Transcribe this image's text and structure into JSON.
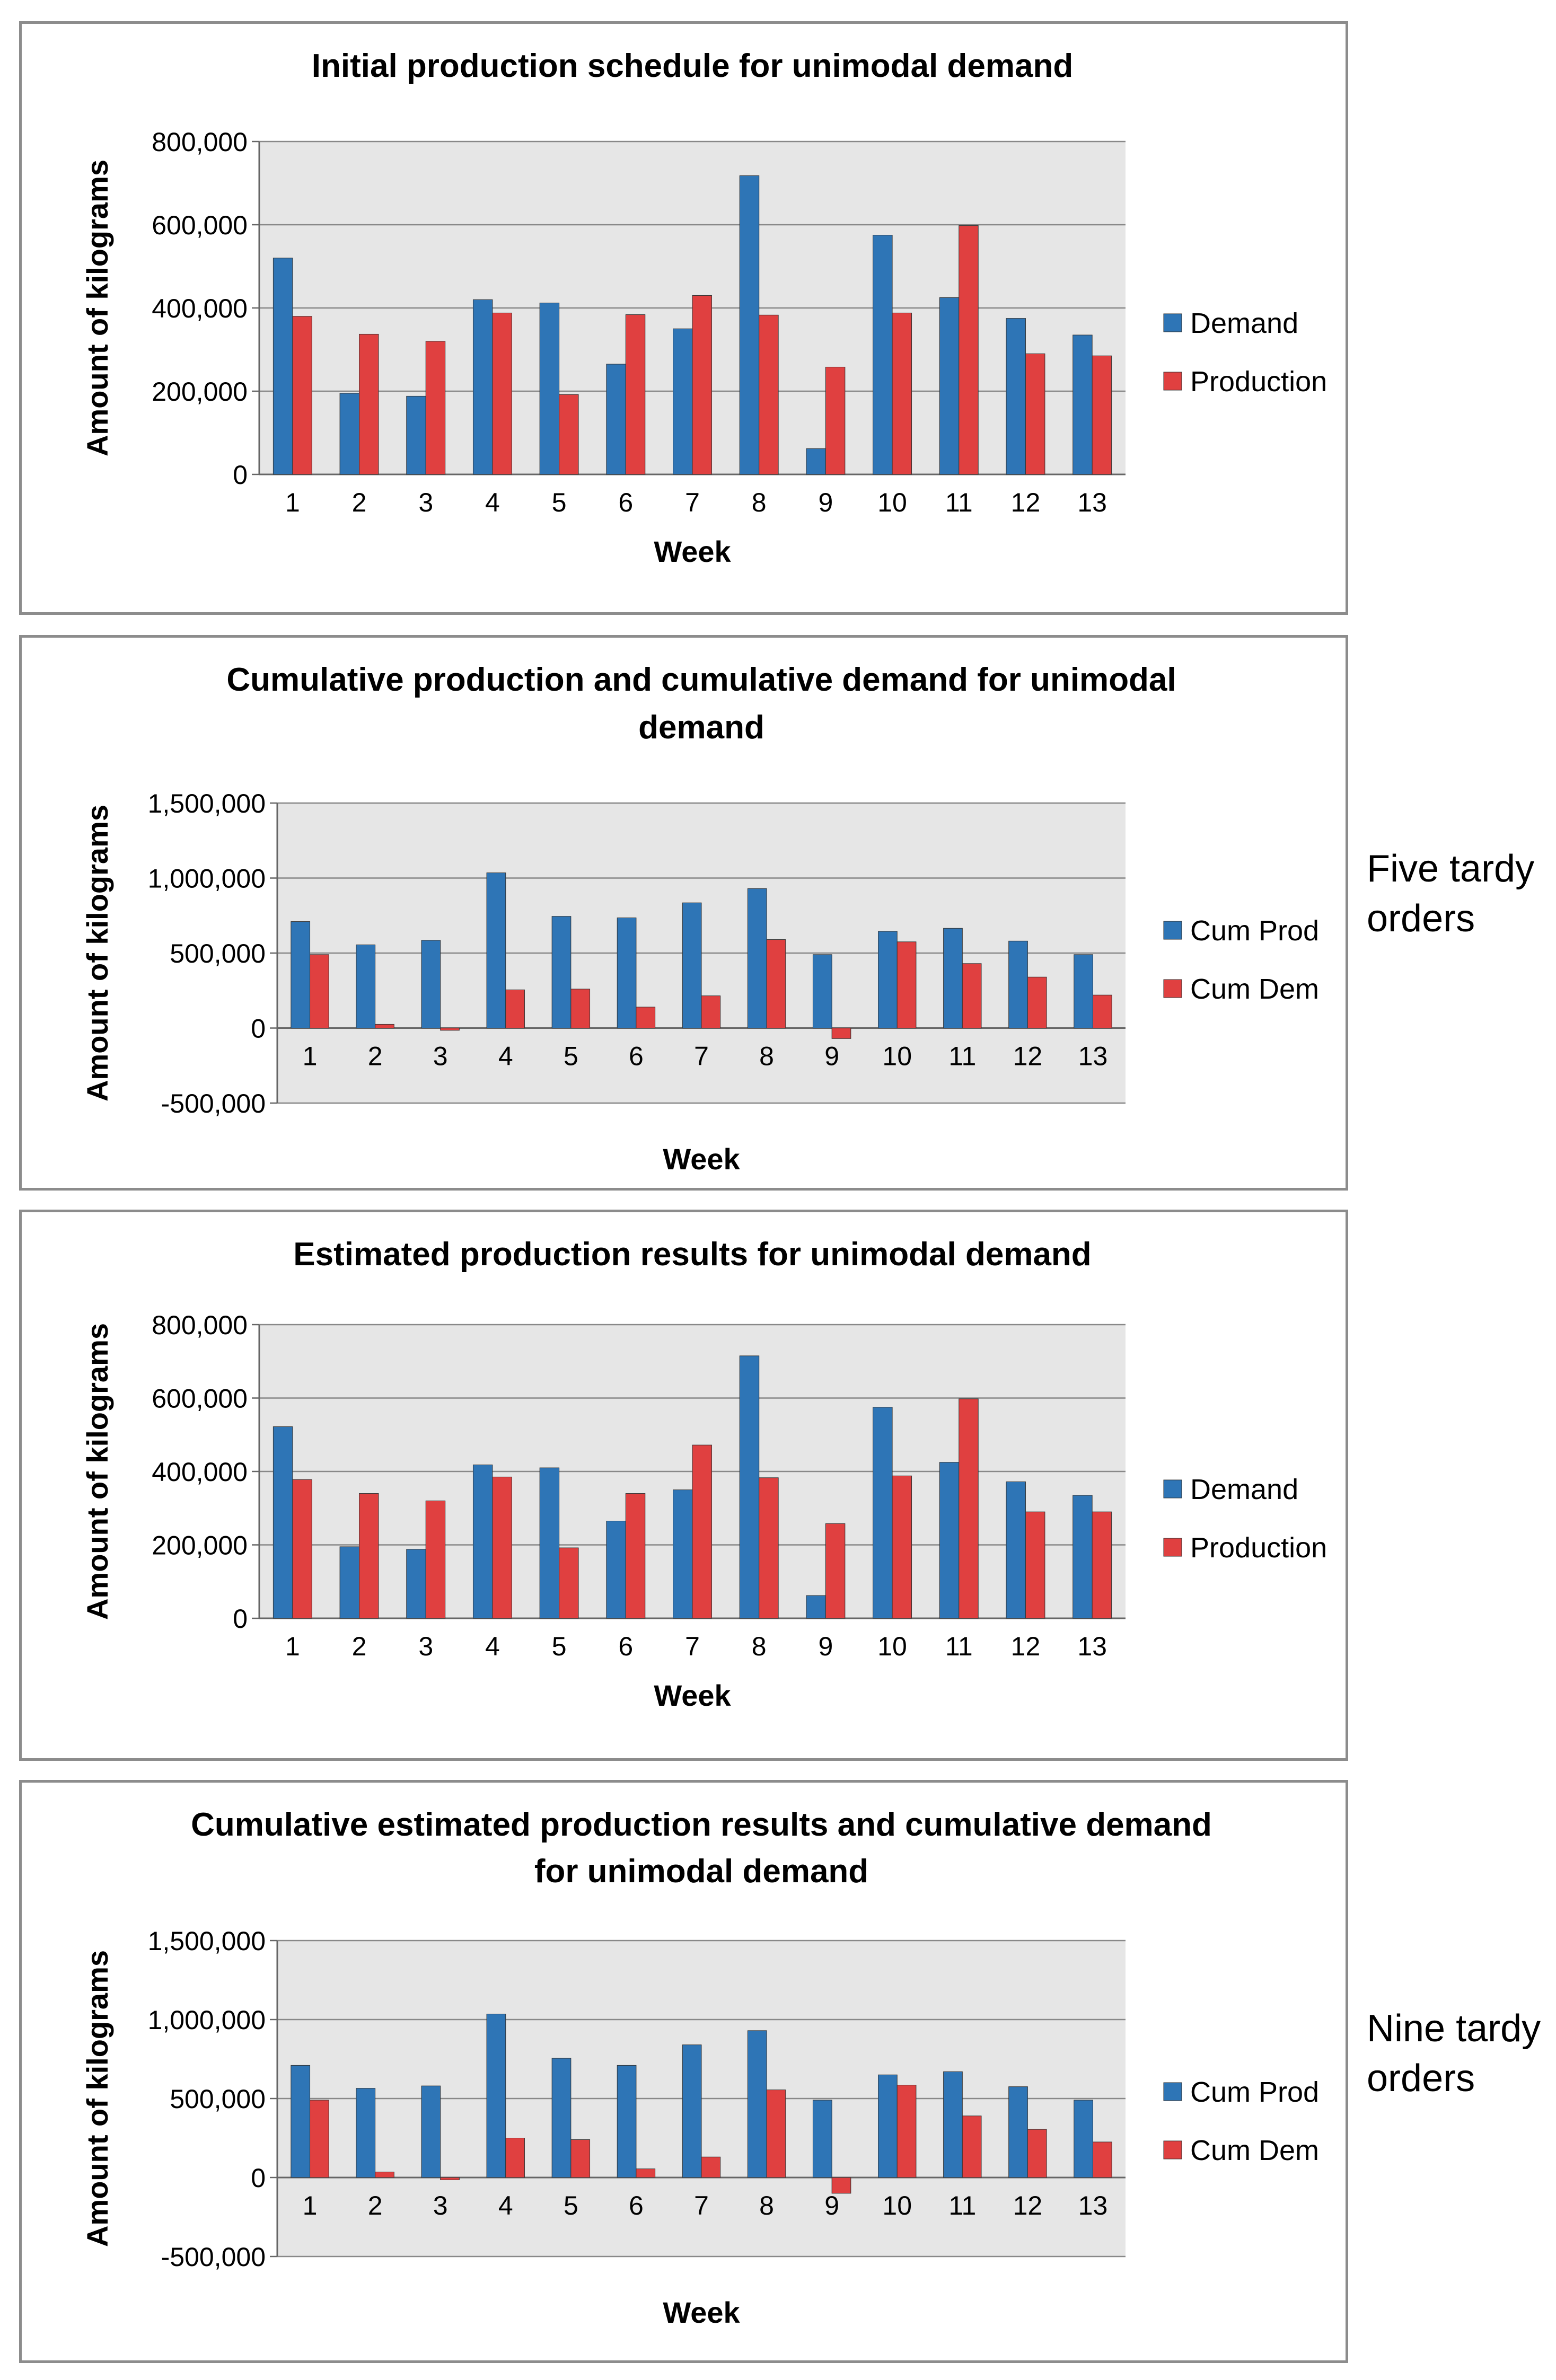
{
  "page": {
    "annotations": [
      {
        "id": "note-1",
        "text": "Five tardy orders",
        "chart_index": 1
      },
      {
        "id": "note-2",
        "text": "Nine tardy orders",
        "chart_index": 3
      }
    ]
  },
  "colors": {
    "series_a": "#2e75b6",
    "series_b": "#e04040",
    "plot_bg": "#e6e6e6",
    "grid": "#888888",
    "frame": "#8c8c8c"
  },
  "chart_data": [
    {
      "type": "bar",
      "title_lines": [
        "Initial production schedule for unimodal demand"
      ],
      "xlabel": "Week",
      "ylabel": "Amount of kilograms",
      "categories": [
        "1",
        "2",
        "3",
        "4",
        "5",
        "6",
        "7",
        "8",
        "9",
        "10",
        "11",
        "12",
        "13"
      ],
      "ylim": [
        0,
        800000
      ],
      "yticks": [
        0,
        200000,
        400000,
        600000,
        800000
      ],
      "ytick_labels": [
        "0",
        "200,000",
        "400,000",
        "600,000",
        "800,000"
      ],
      "grid": true,
      "legend": "right",
      "series": [
        {
          "name": "Demand",
          "values": [
            520000,
            195000,
            188000,
            420000,
            412000,
            265000,
            350000,
            718000,
            62000,
            575000,
            425000,
            375000,
            335000
          ]
        },
        {
          "name": "Production",
          "values": [
            380000,
            337000,
            320000,
            388000,
            192000,
            384000,
            430000,
            383000,
            258000,
            388000,
            598000,
            290000,
            285000
          ]
        }
      ]
    },
    {
      "type": "bar",
      "title_lines": [
        "Cumulative production and cumulative demand for unimodal",
        "demand"
      ],
      "xlabel": "Week",
      "ylabel": "Amount of kilograms",
      "categories": [
        "1",
        "2",
        "3",
        "4",
        "5",
        "6",
        "7",
        "8",
        "9",
        "10",
        "11",
        "12",
        "13"
      ],
      "ylim": [
        -500000,
        1500000
      ],
      "yticks": [
        -500000,
        0,
        500000,
        1000000,
        1500000
      ],
      "ytick_labels": [
        "-500,000",
        "0",
        "500,000",
        "1,000,000",
        "1,500,000"
      ],
      "grid": true,
      "legend": "right",
      "series": [
        {
          "name": "Cum Prod",
          "values": [
            710000,
            555000,
            585000,
            1035000,
            745000,
            735000,
            835000,
            930000,
            490000,
            645000,
            665000,
            580000,
            490000
          ]
        },
        {
          "name": "Cum Dem",
          "values": [
            490000,
            25000,
            -15000,
            255000,
            260000,
            140000,
            215000,
            590000,
            -70000,
            575000,
            430000,
            340000,
            220000
          ]
        }
      ]
    },
    {
      "type": "bar",
      "title_lines": [
        "Estimated production results for unimodal demand"
      ],
      "xlabel": "Week",
      "ylabel": "Amount of kilograms",
      "categories": [
        "1",
        "2",
        "3",
        "4",
        "5",
        "6",
        "7",
        "8",
        "9",
        "10",
        "11",
        "12",
        "13"
      ],
      "ylim": [
        0,
        800000
      ],
      "yticks": [
        0,
        200000,
        400000,
        600000,
        800000
      ],
      "ytick_labels": [
        "0",
        "200,000",
        "400,000",
        "600,000",
        "800,000"
      ],
      "grid": true,
      "legend": "right",
      "series": [
        {
          "name": "Demand",
          "values": [
            522000,
            195000,
            188000,
            418000,
            410000,
            265000,
            350000,
            715000,
            62000,
            575000,
            425000,
            372000,
            335000
          ]
        },
        {
          "name": "Production",
          "values": [
            378000,
            340000,
            320000,
            385000,
            192000,
            340000,
            472000,
            383000,
            258000,
            388000,
            598000,
            290000,
            290000
          ]
        }
      ]
    },
    {
      "type": "bar",
      "title_lines": [
        "Cumulative estimated production results and cumulative demand",
        "for unimodal demand"
      ],
      "xlabel": "Week",
      "ylabel": "Amount of kilograms",
      "categories": [
        "1",
        "2",
        "3",
        "4",
        "5",
        "6",
        "7",
        "8",
        "9",
        "10",
        "11",
        "12",
        "13"
      ],
      "ylim": [
        -500000,
        1500000
      ],
      "yticks": [
        -500000,
        0,
        500000,
        1000000,
        1500000
      ],
      "ytick_labels": [
        "-500,000",
        "0",
        "500,000",
        "1,000,000",
        "1,500,000"
      ],
      "grid": true,
      "legend": "right",
      "series": [
        {
          "name": "Cum Prod",
          "values": [
            710000,
            565000,
            580000,
            1035000,
            755000,
            710000,
            840000,
            930000,
            490000,
            650000,
            670000,
            575000,
            490000
          ]
        },
        {
          "name": "Cum Dem",
          "values": [
            490000,
            35000,
            -15000,
            250000,
            240000,
            55000,
            130000,
            555000,
            -100000,
            585000,
            390000,
            305000,
            225000
          ]
        }
      ]
    }
  ]
}
